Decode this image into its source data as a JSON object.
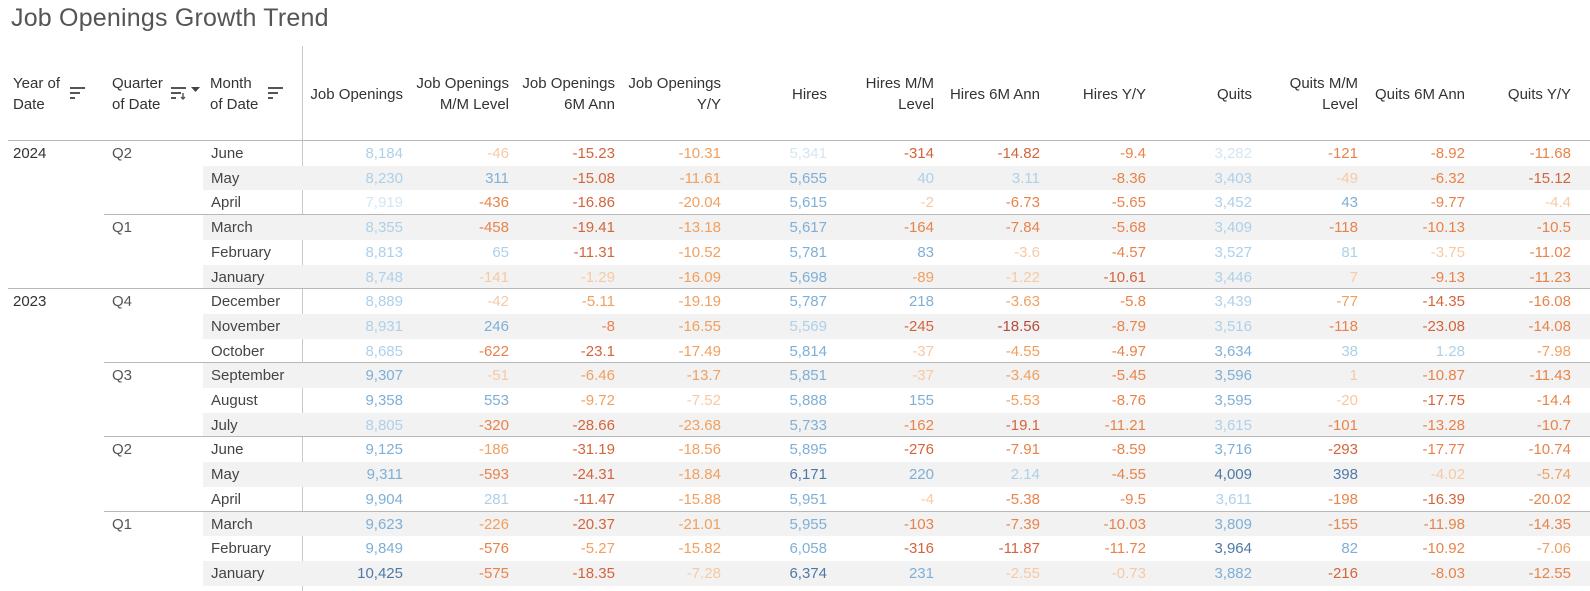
{
  "title": "Job Openings Growth Trend",
  "headers": {
    "year": [
      "Year of",
      "Date"
    ],
    "quarter": [
      "Quarter",
      "of Date"
    ],
    "month": [
      "Month",
      "of Date"
    ],
    "measures": [
      [
        "Job Openings"
      ],
      [
        "Job Openings",
        "M/M Level"
      ],
      [
        "Job Openings",
        "6M Ann"
      ],
      [
        "Job Openings",
        "Y/Y"
      ],
      [
        "Hires"
      ],
      [
        "Hires M/M",
        "Level"
      ],
      [
        "Hires 6M Ann"
      ],
      [
        "Hires Y/Y"
      ],
      [
        "Quits"
      ],
      [
        "Quits M/M",
        "Level"
      ],
      [
        "Quits 6M Ann"
      ],
      [
        "Quits Y/Y"
      ]
    ]
  },
  "icons": [
    "sort-year-icon",
    "sort-quarter-icon",
    "dropdown-caret-icon",
    "sort-month-icon"
  ],
  "colors": {
    "blue_dark": "#4e79a7",
    "blue": "#7fafd6",
    "blue_light": "#aed0e8",
    "blue_faint": "#d4e6f2",
    "orange_faint": "#f7c9a4",
    "orange": "#f0a060",
    "orange_mid": "#e8834a",
    "red_orange": "#d4643c",
    "red": "#b84a3a",
    "band": "#f2f2f2"
  },
  "groups": [
    {
      "year": "2024",
      "quarter": "Q2",
      "row": 0
    },
    {
      "quarter": "Q1",
      "row": 3
    },
    {
      "year": "2023",
      "quarter": "Q4",
      "row": 6
    },
    {
      "quarter": "Q3",
      "row": 9
    },
    {
      "quarter": "Q2",
      "row": 12
    },
    {
      "quarter": "Q1",
      "row": 15
    }
  ],
  "rows": [
    {
      "month": "June",
      "values": [
        "8,184",
        "-46",
        "-15.23",
        "-10.31",
        "5,341",
        "-314",
        "-14.82",
        "-9.4",
        "3,282",
        "-121",
        "-8.92",
        "-11.68"
      ]
    },
    {
      "month": "May",
      "values": [
        "8,230",
        "311",
        "-15.08",
        "-11.61",
        "5,655",
        "40",
        "3.11",
        "-8.36",
        "3,403",
        "-49",
        "-6.32",
        "-15.12"
      ]
    },
    {
      "month": "April",
      "values": [
        "7,919",
        "-436",
        "-16.86",
        "-20.04",
        "5,615",
        "-2",
        "-6.73",
        "-5.65",
        "3,452",
        "43",
        "-9.77",
        "-4.4"
      ]
    },
    {
      "month": "March",
      "values": [
        "8,355",
        "-458",
        "-19.41",
        "-13.18",
        "5,617",
        "-164",
        "-7.84",
        "-5.68",
        "3,409",
        "-118",
        "-10.13",
        "-10.5"
      ]
    },
    {
      "month": "February",
      "values": [
        "8,813",
        "65",
        "-11.31",
        "-10.52",
        "5,781",
        "83",
        "-3.6",
        "-4.57",
        "3,527",
        "81",
        "-3.75",
        "-11.02"
      ]
    },
    {
      "month": "January",
      "values": [
        "8,748",
        "-141",
        "-1.29",
        "-16.09",
        "5,698",
        "-89",
        "-1.22",
        "-10.61",
        "3,446",
        "7",
        "-9.13",
        "-11.23"
      ]
    },
    {
      "month": "December",
      "values": [
        "8,889",
        "-42",
        "-5.11",
        "-19.19",
        "5,787",
        "218",
        "-3.63",
        "-5.8",
        "3,439",
        "-77",
        "-14.35",
        "-16.08"
      ]
    },
    {
      "month": "November",
      "values": [
        "8,931",
        "246",
        "-8",
        "-16.55",
        "5,569",
        "-245",
        "-18.56",
        "-8.79",
        "3,516",
        "-118",
        "-23.08",
        "-14.08"
      ]
    },
    {
      "month": "October",
      "values": [
        "8,685",
        "-622",
        "-23.1",
        "-17.49",
        "5,814",
        "-37",
        "-4.55",
        "-4.97",
        "3,634",
        "38",
        "1.28",
        "-7.98"
      ]
    },
    {
      "month": "September",
      "values": [
        "9,307",
        "-51",
        "-6.46",
        "-13.7",
        "5,851",
        "-37",
        "-3.46",
        "-5.45",
        "3,596",
        "1",
        "-10.87",
        "-11.43"
      ]
    },
    {
      "month": "August",
      "values": [
        "9,358",
        "553",
        "-9.72",
        "-7.52",
        "5,888",
        "155",
        "-5.53",
        "-8.76",
        "3,595",
        "-20",
        "-17.75",
        "-14.4"
      ]
    },
    {
      "month": "July",
      "values": [
        "8,805",
        "-320",
        "-28.66",
        "-23.68",
        "5,733",
        "-162",
        "-19.1",
        "-11.21",
        "3,615",
        "-101",
        "-13.28",
        "-10.7"
      ]
    },
    {
      "month": "June",
      "values": [
        "9,125",
        "-186",
        "-31.19",
        "-18.56",
        "5,895",
        "-276",
        "-7.91",
        "-8.59",
        "3,716",
        "-293",
        "-17.77",
        "-10.74"
      ]
    },
    {
      "month": "May",
      "values": [
        "9,311",
        "-593",
        "-24.31",
        "-18.84",
        "6,171",
        "220",
        "2.14",
        "-4.55",
        "4,009",
        "398",
        "-4.02",
        "-5.74"
      ]
    },
    {
      "month": "April",
      "values": [
        "9,904",
        "281",
        "-11.47",
        "-15.88",
        "5,951",
        "-4",
        "-5.38",
        "-9.5",
        "3,611",
        "-198",
        "-16.39",
        "-20.02"
      ]
    },
    {
      "month": "March",
      "values": [
        "9,623",
        "-226",
        "-20.37",
        "-21.01",
        "5,955",
        "-103",
        "-7.39",
        "-10.03",
        "3,809",
        "-155",
        "-11.98",
        "-14.35"
      ]
    },
    {
      "month": "February",
      "values": [
        "9,849",
        "-576",
        "-5.27",
        "-15.82",
        "6,058",
        "-316",
        "-11.87",
        "-11.72",
        "3,964",
        "82",
        "-10.92",
        "-7.06"
      ]
    },
    {
      "month": "January",
      "values": [
        "10,425",
        "-575",
        "-18.35",
        "-7.28",
        "6,374",
        "231",
        "-2.55",
        "-0.73",
        "3,882",
        "-216",
        "-8.03",
        "-12.55"
      ]
    }
  ],
  "cell_colors": [
    [
      "blue_light",
      "orange_faint",
      "red_orange",
      "orange",
      "blue_faint",
      "red_orange",
      "red_orange",
      "orange_mid",
      "blue_faint",
      "orange_mid",
      "orange_mid",
      "orange_mid"
    ],
    [
      "blue_light",
      "blue",
      "red_orange",
      "orange",
      "blue",
      "blue_light",
      "blue_light",
      "orange_mid",
      "blue_light",
      "orange_faint",
      "orange_mid",
      "red_orange"
    ],
    [
      "blue_faint",
      "orange_mid",
      "red_orange",
      "orange",
      "blue",
      "orange_faint",
      "orange_mid",
      "orange_mid",
      "blue_light",
      "blue",
      "orange_mid",
      "orange_faint"
    ],
    [
      "blue_light",
      "orange_mid",
      "red_orange",
      "orange",
      "blue",
      "orange_mid",
      "orange_mid",
      "orange_mid",
      "blue_light",
      "orange_mid",
      "orange_mid",
      "orange_mid"
    ],
    [
      "blue_light",
      "blue_light",
      "red_orange",
      "orange",
      "blue",
      "blue",
      "orange_faint",
      "orange_mid",
      "blue_light",
      "blue_light",
      "orange_faint",
      "orange_mid"
    ],
    [
      "blue_light",
      "orange_faint",
      "orange_faint",
      "orange",
      "blue",
      "orange",
      "orange_faint",
      "red_orange",
      "blue_light",
      "orange_faint",
      "orange_mid",
      "orange_mid"
    ],
    [
      "blue_light",
      "orange_faint",
      "orange",
      "orange",
      "blue",
      "blue",
      "orange",
      "orange_mid",
      "blue_light",
      "orange",
      "red_orange",
      "orange_mid"
    ],
    [
      "blue_light",
      "blue",
      "orange_mid",
      "orange",
      "blue_light",
      "red_orange",
      "red",
      "orange_mid",
      "blue_light",
      "orange_mid",
      "red_orange",
      "orange_mid"
    ],
    [
      "blue_light",
      "orange_mid",
      "red_orange",
      "orange",
      "blue",
      "orange_faint",
      "orange",
      "orange_mid",
      "blue",
      "blue_light",
      "blue_light",
      "orange"
    ],
    [
      "blue",
      "orange_faint",
      "orange",
      "orange",
      "blue",
      "orange_faint",
      "orange",
      "orange_mid",
      "blue",
      "orange_faint",
      "orange_mid",
      "orange_mid"
    ],
    [
      "blue",
      "blue",
      "orange",
      "orange_faint",
      "blue",
      "blue",
      "orange",
      "orange_mid",
      "blue",
      "orange_faint",
      "red_orange",
      "orange_mid"
    ],
    [
      "blue_light",
      "orange_mid",
      "red_orange",
      "orange",
      "blue",
      "orange_mid",
      "red_orange",
      "orange_mid",
      "blue_light",
      "orange_mid",
      "orange_mid",
      "orange_mid"
    ],
    [
      "blue",
      "orange",
      "red_orange",
      "orange",
      "blue",
      "red_orange",
      "orange_mid",
      "orange_mid",
      "blue",
      "red_orange",
      "orange_mid",
      "orange_mid"
    ],
    [
      "blue",
      "orange_mid",
      "red_orange",
      "orange",
      "blue_dark",
      "blue",
      "blue_light",
      "orange_mid",
      "blue_dark",
      "blue_dark",
      "orange_faint",
      "orange"
    ],
    [
      "blue",
      "blue_light",
      "red_orange",
      "orange",
      "blue",
      "orange_faint",
      "orange_mid",
      "orange_mid",
      "blue_light",
      "orange_mid",
      "red_orange",
      "orange_mid"
    ],
    [
      "blue",
      "orange",
      "red_orange",
      "orange",
      "blue",
      "orange_mid",
      "orange_mid",
      "orange_mid",
      "blue",
      "orange_mid",
      "orange_mid",
      "orange_mid"
    ],
    [
      "blue",
      "orange_mid",
      "orange",
      "orange",
      "blue",
      "red_orange",
      "red_orange",
      "orange_mid",
      "blue_dark",
      "blue",
      "orange_mid",
      "orange"
    ],
    [
      "blue_dark",
      "orange_mid",
      "red_orange",
      "orange_faint",
      "blue_dark",
      "blue",
      "orange_faint",
      "orange_faint",
      "blue",
      "red_orange",
      "orange_mid",
      "orange_mid"
    ]
  ]
}
